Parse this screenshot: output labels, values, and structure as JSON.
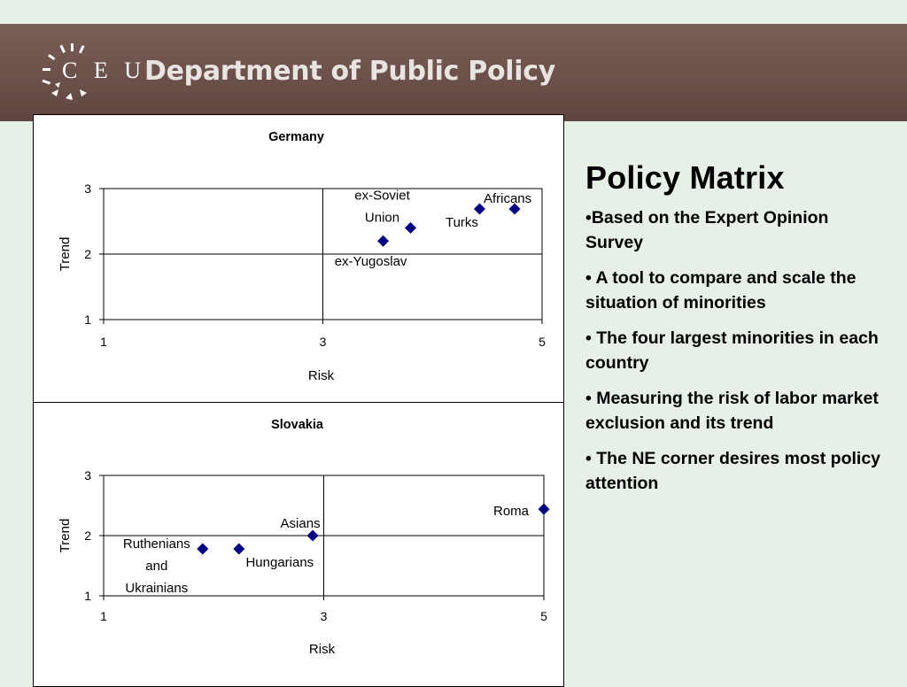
{
  "header": {
    "logo_text": "C E U",
    "title": "Department of Public Policy"
  },
  "side": {
    "title": "Policy Matrix",
    "bullets": [
      "•Based on the Expert Opinion Survey",
      "• A tool to compare and scale the situation of minorities",
      "• The four largest minorities in each country",
      "• Measuring the risk of labor market exclusion and its trend",
      "• The NE corner desires most policy attention"
    ]
  },
  "colors": {
    "marker": "#000080",
    "header_bg": "#6b514a",
    "page_bg": "#e6f0e6"
  },
  "chart_data": [
    {
      "type": "scatter",
      "title": "Germany",
      "xlabel": "Risk",
      "ylabel": "Trend",
      "xlim": [
        1,
        5
      ],
      "ylim": [
        1,
        3
      ],
      "xticks": [
        1,
        3,
        5
      ],
      "yticks": [
        1,
        2,
        3
      ],
      "quadrant_lines": {
        "x": 3,
        "y": 2
      },
      "points": [
        {
          "label": "ex-Yugoslav",
          "x": 3.55,
          "y": 2.2
        },
        {
          "label": "ex-Soviet Union",
          "x": 3.8,
          "y": 2.4
        },
        {
          "label": "Turks",
          "x": 4.43,
          "y": 2.69
        },
        {
          "label": "Africans",
          "x": 4.75,
          "y": 2.69
        }
      ]
    },
    {
      "type": "scatter",
      "title": "Slovakia",
      "xlabel": "Risk",
      "ylabel": "Trend",
      "xlim": [
        1,
        5
      ],
      "ylim": [
        1,
        3
      ],
      "xticks": [
        1,
        3,
        5
      ],
      "yticks": [
        1,
        2,
        3
      ],
      "quadrant_lines": {
        "x": 3,
        "y": 2
      },
      "points": [
        {
          "label": "Ruthenians and Ukrainians",
          "x": 1.9,
          "y": 1.78
        },
        {
          "label": "Hungarians",
          "x": 2.23,
          "y": 1.78
        },
        {
          "label": "Asians",
          "x": 2.9,
          "y": 2.0
        },
        {
          "label": "Roma",
          "x": 5.0,
          "y": 2.44
        }
      ]
    }
  ]
}
